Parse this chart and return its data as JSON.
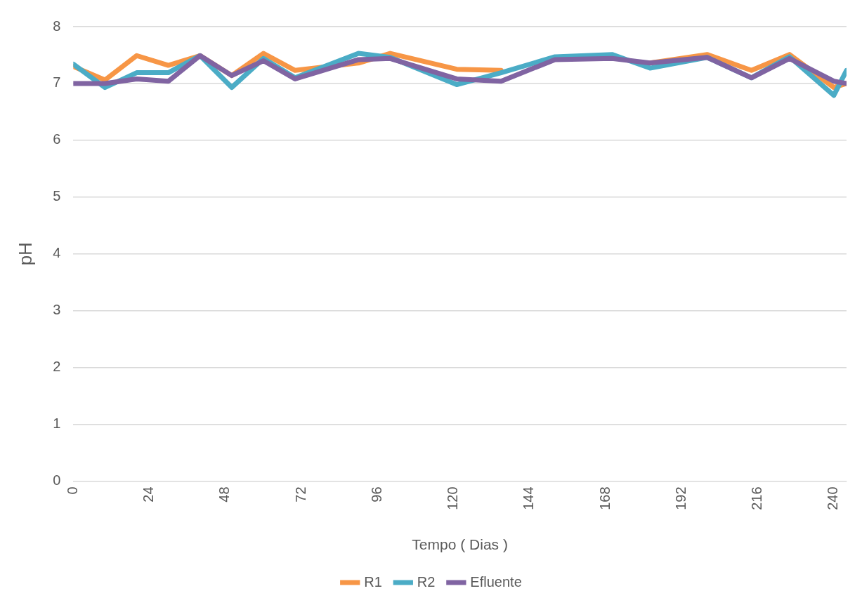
{
  "chart_data": {
    "type": "line",
    "xlabel": "Tempo ( Dias )",
    "ylabel": "pH",
    "x": [
      0,
      10,
      20,
      30,
      40,
      50,
      60,
      70,
      90,
      100,
      121,
      135,
      152,
      170,
      182,
      200,
      214,
      226,
      240,
      244
    ],
    "xlim": [
      0,
      244
    ],
    "xticks": [
      0,
      24,
      48,
      72,
      96,
      120,
      144,
      168,
      192,
      216,
      240
    ],
    "ylim": [
      0,
      8
    ],
    "yticks": [
      0,
      1,
      2,
      3,
      4,
      5,
      6,
      7,
      8
    ],
    "grid": "y",
    "legend": "bottom",
    "marker": "none",
    "line_style": "solid",
    "series": [
      {
        "name": "R1",
        "color": "#f79646",
        "values": [
          7.3,
          7.06,
          7.49,
          7.32,
          7.49,
          7.14,
          7.53,
          7.23,
          7.36,
          7.53,
          7.25,
          7.23,
          null,
          null,
          7.36,
          7.51,
          7.23,
          7.51,
          6.93,
          7.0
        ]
      },
      {
        "name": "R2",
        "color": "#4bacc6",
        "values": [
          7.34,
          6.93,
          7.19,
          7.19,
          7.49,
          6.93,
          7.44,
          7.1,
          7.53,
          7.46,
          6.98,
          7.19,
          7.47,
          7.51,
          7.27,
          7.46,
          7.1,
          7.47,
          6.79,
          7.23
        ]
      },
      {
        "name": "Efluente",
        "color": "#8064a2",
        "values": [
          7.0,
          7.0,
          7.08,
          7.04,
          7.49,
          7.14,
          7.4,
          7.08,
          7.42,
          7.44,
          7.08,
          7.04,
          7.42,
          7.44,
          7.36,
          7.46,
          7.1,
          7.44,
          7.04,
          7.0
        ]
      }
    ]
  }
}
